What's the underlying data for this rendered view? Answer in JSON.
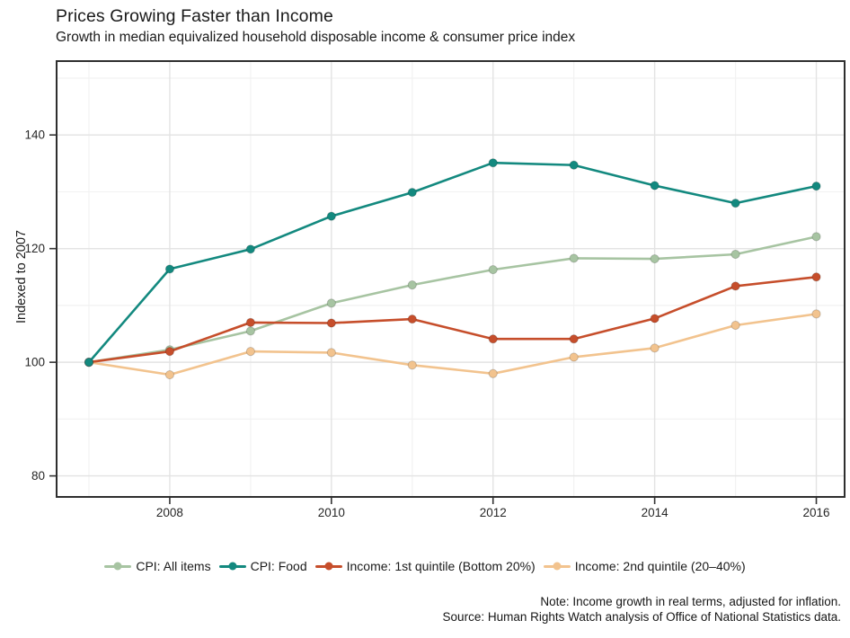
{
  "title": "Prices Growing Faster than Income",
  "subtitle": "Growth in median equivalized household disposable income & consumer price index",
  "note": "Note: Income growth in real terms, adjusted for inflation.",
  "source": "Source: Human Rights Watch analysis of Office of National Statistics data.",
  "chart_data": {
    "type": "line",
    "title": "Prices Growing Faster than Income",
    "subtitle": "Growth in median equivalized household disposable income & consumer price index",
    "xlabel": "",
    "ylabel": "Indexed to 2007",
    "x": [
      2007,
      2008,
      2009,
      2010,
      2011,
      2012,
      2013,
      2014,
      2015,
      2016
    ],
    "series": [
      {
        "name": "CPI: All items",
        "color": "#a7c4a2",
        "values": [
          100,
          102.2,
          105.5,
          110.4,
          113.6,
          116.3,
          118.3,
          118.2,
          119.0,
          122.1
        ]
      },
      {
        "name": "CPI: Food",
        "color": "#13897f",
        "values": [
          100,
          116.4,
          119.9,
          125.7,
          129.9,
          135.1,
          134.7,
          131.1,
          128.0,
          131.0
        ]
      },
      {
        "name": "Income: 1st quintile (Bottom 20%)",
        "color": "#c64e2b",
        "values": [
          100,
          101.9,
          107.0,
          106.9,
          107.6,
          104.1,
          104.1,
          107.7,
          113.4,
          115.0
        ]
      },
      {
        "name": "Income: 2nd quintile (20–40%)",
        "color": "#f2c38e",
        "values": [
          100,
          97.8,
          101.9,
          101.7,
          99.5,
          98.0,
          100.9,
          102.5,
          106.5,
          108.5
        ]
      }
    ],
    "x_ticks": [
      2008,
      2010,
      2012,
      2014,
      2016
    ],
    "y_ticks": [
      80,
      100,
      120,
      140
    ],
    "y_minor": [
      90,
      110,
      130,
      150
    ],
    "x_minor": [
      2007,
      2009,
      2011,
      2013,
      2015
    ],
    "xlim": [
      2006.6,
      2016.35
    ],
    "ylim": [
      76.3,
      153.0
    ],
    "grid": true,
    "legend_position": "bottom"
  }
}
